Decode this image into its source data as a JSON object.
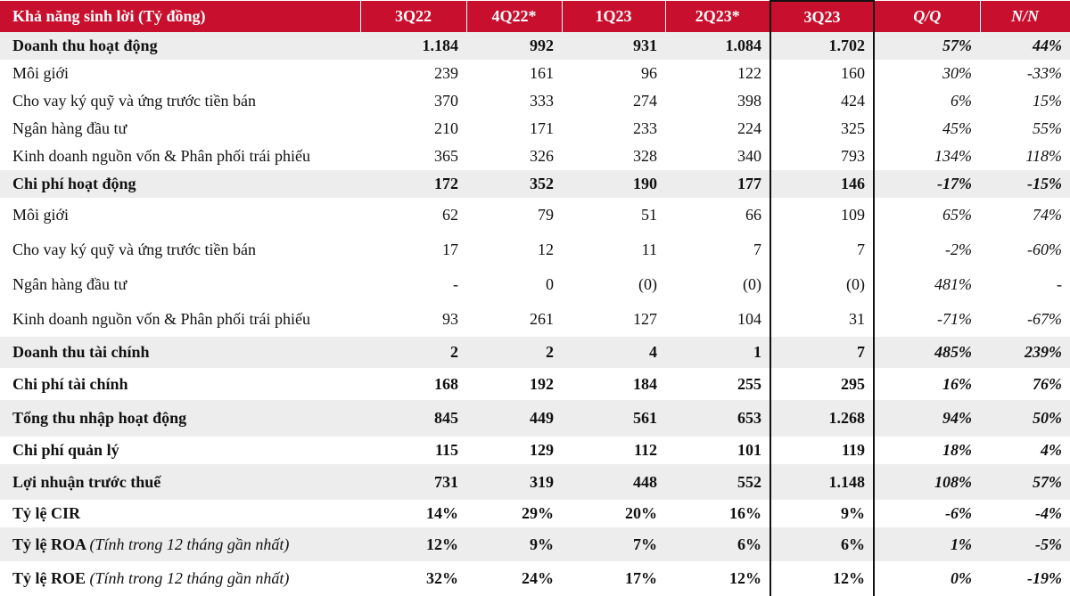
{
  "header": {
    "title": "Khả năng sinh lời (Tỷ đồng)",
    "columns": [
      "3Q22",
      "4Q22*",
      "1Q23",
      "2Q23*",
      "3Q23",
      "Q/Q",
      "N/N"
    ]
  },
  "rows": [
    {
      "label": "Doanh thu hoạt động",
      "values": [
        "1.184",
        "992",
        "931",
        "1.084",
        "1.702"
      ],
      "qq": "57%",
      "nn": "44%"
    },
    {
      "label": "Môi giới",
      "values": [
        "239",
        "161",
        "96",
        "122",
        "160"
      ],
      "qq": "30%",
      "nn": "-33%"
    },
    {
      "label": "Cho vay ký quỹ và ứng trước tiền bán",
      "values": [
        "370",
        "333",
        "274",
        "398",
        "424"
      ],
      "qq": "6%",
      "nn": "15%"
    },
    {
      "label": "Ngân hàng đầu tư",
      "values": [
        "210",
        "171",
        "233",
        "224",
        "325"
      ],
      "qq": "45%",
      "nn": "55%"
    },
    {
      "label": "Kinh doanh nguồn vốn & Phân phối trái phiếu",
      "values": [
        "365",
        "326",
        "328",
        "340",
        "793"
      ],
      "qq": "134%",
      "nn": "118%"
    },
    {
      "label": "Chi phí hoạt động",
      "values": [
        "172",
        "352",
        "190",
        "177",
        "146"
      ],
      "qq": "-17%",
      "nn": "-15%"
    },
    {
      "label": "Môi giới",
      "values": [
        "62",
        "79",
        "51",
        "66",
        "109"
      ],
      "qq": "65%",
      "nn": "74%"
    },
    {
      "label": "Cho vay ký quỹ và ứng trước tiền bán",
      "values": [
        "17",
        "12",
        "11",
        "7",
        "7"
      ],
      "qq": "-2%",
      "nn": "-60%"
    },
    {
      "label": "Ngân hàng đầu tư",
      "values": [
        "-",
        "0",
        "(0)",
        "(0)",
        "(0)"
      ],
      "qq": "481%",
      "nn": "-"
    },
    {
      "label": "Kinh doanh nguồn vốn & Phân phối trái phiếu",
      "values": [
        "93",
        "261",
        "127",
        "104",
        "31"
      ],
      "qq": "-71%",
      "nn": "-67%"
    },
    {
      "label": "Doanh thu tài chính",
      "values": [
        "2",
        "2",
        "4",
        "1",
        "7"
      ],
      "qq": "485%",
      "nn": "239%"
    },
    {
      "label": "Chi phí tài chính",
      "values": [
        "168",
        "192",
        "184",
        "255",
        "295"
      ],
      "qq": "16%",
      "nn": "76%"
    },
    {
      "label": "Tổng thu nhập hoạt động",
      "values": [
        "845",
        "449",
        "561",
        "653",
        "1.268"
      ],
      "qq": "94%",
      "nn": "50%"
    },
    {
      "label": "Chi phí quản lý",
      "values": [
        "115",
        "129",
        "112",
        "101",
        "119"
      ],
      "qq": "18%",
      "nn": "4%"
    },
    {
      "label": "Lợi nhuận trước thuế",
      "values": [
        "731",
        "319",
        "448",
        "552",
        "1.148"
      ],
      "qq": "108%",
      "nn": "57%"
    },
    {
      "label": "Tỷ lệ CIR",
      "values": [
        "14%",
        "29%",
        "20%",
        "16%",
        "9%"
      ],
      "qq": "-6%",
      "nn": "-4%"
    },
    {
      "label": "Tỷ lệ ROA",
      "note": "(Tính trong 12 tháng gần nhất)",
      "values": [
        "12%",
        "9%",
        "7%",
        "6%",
        "6%"
      ],
      "qq": "1%",
      "nn": "-5%"
    },
    {
      "label": "Tỷ lệ ROE",
      "note": "(Tính trong 12 tháng gần nhất)",
      "values": [
        "32%",
        "24%",
        "17%",
        "12%",
        "12%"
      ],
      "qq": "0%",
      "nn": "-19%"
    }
  ],
  "colors": {
    "header_bg": "#c8102e",
    "shade": "#ededed"
  }
}
